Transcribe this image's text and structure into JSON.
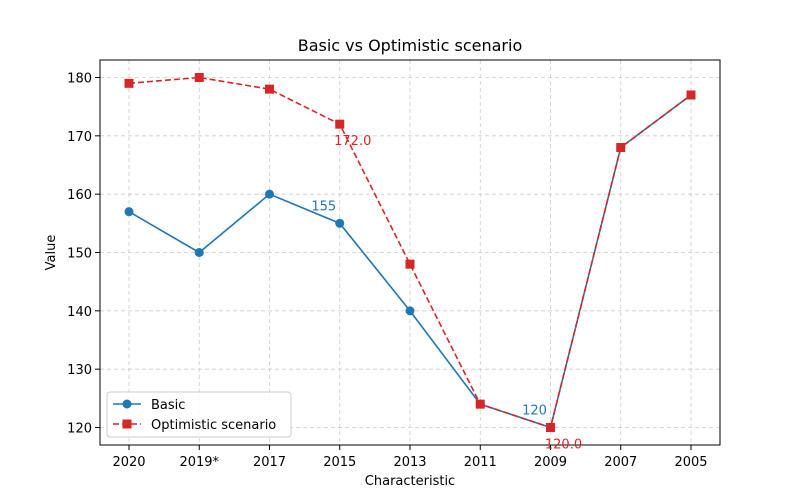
{
  "chart_data": {
    "type": "line",
    "title": "Basic vs Optimistic scenario",
    "xlabel": "Characteristic",
    "ylabel": "Value",
    "categories": [
      "2020",
      "2019*",
      "2017",
      "2015",
      "2013",
      "2011",
      "2009",
      "2007",
      "2005"
    ],
    "ylim": [
      117,
      183
    ],
    "yticks": [
      120,
      130,
      140,
      150,
      160,
      170,
      180
    ],
    "grid": true,
    "legend_position": "lower-left",
    "series": [
      {
        "name": "Basic",
        "color": "#1f77b4",
        "marker": "circle",
        "linestyle": "solid",
        "values": [
          157,
          150,
          160,
          155,
          140,
          124,
          120,
          168,
          177
        ]
      },
      {
        "name": "Optimistic scenario",
        "color": "#d62728",
        "marker": "square",
        "linestyle": "dashed",
        "values": [
          179,
          180,
          178,
          172,
          148,
          124,
          120,
          168,
          177
        ]
      }
    ],
    "annotations": [
      {
        "series": 0,
        "category": "2015",
        "text": "155"
      },
      {
        "series": 0,
        "category": "2009",
        "text": "120"
      },
      {
        "series": 1,
        "category": "2015",
        "text": "172.0"
      },
      {
        "series": 1,
        "category": "2009",
        "text": "120.0"
      }
    ]
  }
}
